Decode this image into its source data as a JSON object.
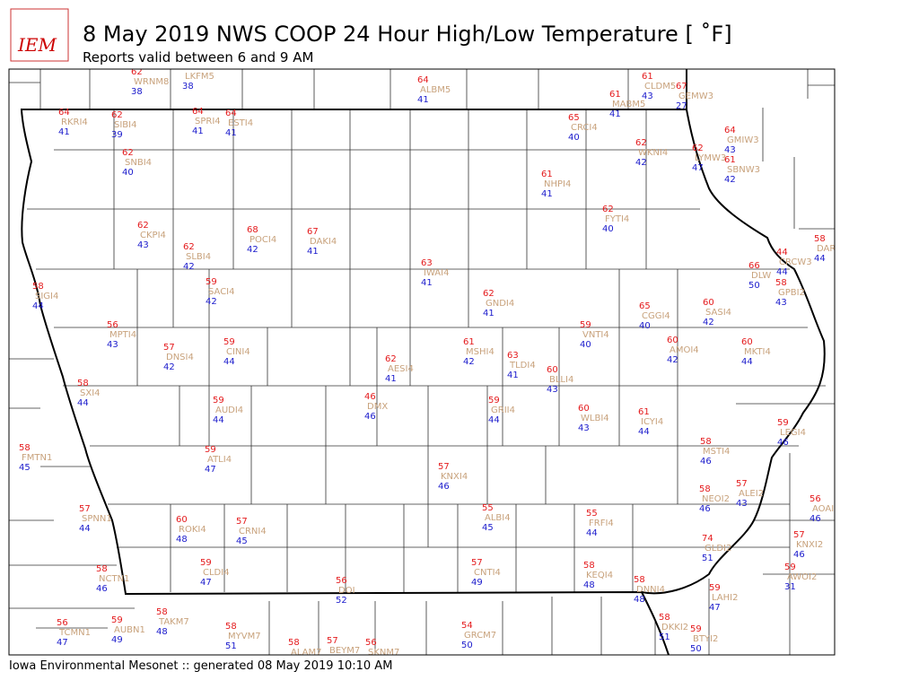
{
  "logo": "IEM",
  "title": "8 May 2019 NWS COOP 24 Hour High/Low Temperature [ ˚F]",
  "subtitle": "Reports valid between 6 and 9 AM",
  "footer": "Iowa Environmental Mesonet :: generated 08 May 2019 10:10 AM",
  "stations": [
    {
      "name": "WRNM8",
      "high": 62,
      "low": 38
    },
    {
      "name": "LKFM5",
      "low": 38
    },
    {
      "name": "ALBM5",
      "high": 64,
      "low": 41
    },
    {
      "name": "CLDM5",
      "high": 61,
      "low": 43
    },
    {
      "name": "MABM5",
      "high": 61,
      "low": 41
    },
    {
      "name": "GEMW3",
      "high": 67,
      "low": 27
    },
    {
      "name": "RKRI4",
      "high": 64,
      "low": 41
    },
    {
      "name": "SIBI4",
      "high": 62,
      "low": 39
    },
    {
      "name": "SPRI4",
      "high": 64,
      "low": 41
    },
    {
      "name": "ESTI4",
      "high": 64,
      "low": 41
    },
    {
      "name": "CRCI4",
      "high": 65,
      "low": 40
    },
    {
      "name": "GMIW3",
      "high": 64,
      "low": 43
    },
    {
      "name": "WKNI4",
      "high": 62,
      "low": 42
    },
    {
      "name": "LYMW3",
      "high": 62,
      "low": 47
    },
    {
      "name": "SBNW3",
      "high": 61,
      "low": 42
    },
    {
      "name": "SNBI4",
      "high": 62,
      "low": 40
    },
    {
      "name": "NHPI4",
      "high": 61,
      "low": 41
    },
    {
      "name": "FYTI4",
      "high": 62,
      "low": 40
    },
    {
      "name": "CKPI4",
      "high": 62,
      "low": 43
    },
    {
      "name": "POCI4",
      "high": 68,
      "low": 42
    },
    {
      "name": "DAKI4",
      "high": 67,
      "low": 41
    },
    {
      "name": "SLBI4",
      "high": 62,
      "low": 42
    },
    {
      "name": "DAR",
      "high": 58,
      "low": 44
    },
    {
      "name": "CRCW3",
      "high": 44,
      "low": 44
    },
    {
      "name": "DLW",
      "high": 66,
      "low": 50
    },
    {
      "name": "GPBI2",
      "high": 58,
      "low": 43
    },
    {
      "name": "IWAI4",
      "high": 63,
      "low": 41
    },
    {
      "name": "SIGI4",
      "high": 58,
      "low": 44
    },
    {
      "name": "SACI4",
      "high": 59,
      "low": 42
    },
    {
      "name": "GNDI4",
      "high": 62,
      "low": 41
    },
    {
      "name": "CGGI4",
      "high": 65,
      "low": 40
    },
    {
      "name": "SASI4",
      "high": 60,
      "low": 42
    },
    {
      "name": "MPTI4",
      "high": 56,
      "low": 43
    },
    {
      "name": "VNTI4",
      "high": 59,
      "low": 40
    },
    {
      "name": "CINI4",
      "high": 59,
      "low": 44
    },
    {
      "name": "DNSI4",
      "high": 57,
      "low": 42
    },
    {
      "name": "MSHI4",
      "high": 61,
      "low": 42
    },
    {
      "name": "AMOI4",
      "high": 60,
      "low": 42
    },
    {
      "name": "MKTI4",
      "high": 60,
      "low": 44
    },
    {
      "name": "AESI4",
      "high": 62,
      "low": 41
    },
    {
      "name": "TLDI4",
      "high": 63,
      "low": 41
    },
    {
      "name": "BLLI4",
      "high": 60,
      "low": 43
    },
    {
      "name": "SXI4",
      "high": 58,
      "low": 44
    },
    {
      "name": "DMX",
      "high": 46,
      "low": 46
    },
    {
      "name": "AUDI4",
      "high": 59,
      "low": 44
    },
    {
      "name": "GRII4",
      "high": 59,
      "low": 44
    },
    {
      "name": "WLBI4",
      "high": 60,
      "low": 43
    },
    {
      "name": "ICYI4",
      "high": 61,
      "low": 44
    },
    {
      "name": "LEGI4",
      "high": 59,
      "low": 46
    },
    {
      "name": "FMTN1",
      "high": 58,
      "low": 45
    },
    {
      "name": "ATLI4",
      "high": 59,
      "low": 47
    },
    {
      "name": "MSTI4",
      "high": 58,
      "low": 46
    },
    {
      "name": "KNXI4",
      "high": 57,
      "low": 46
    },
    {
      "name": "NEOI2",
      "high": 58,
      "low": 46
    },
    {
      "name": "ALEI2",
      "high": 57,
      "low": 43
    },
    {
      "name": "AOAI",
      "high": 56,
      "low": 46
    },
    {
      "name": "SPNN1",
      "high": 57,
      "low": 44
    },
    {
      "name": "ALBI4",
      "high": 55,
      "low": 45
    },
    {
      "name": "FRFI4",
      "high": 55,
      "low": 44
    },
    {
      "name": "ROKI4",
      "high": 60,
      "low": 48
    },
    {
      "name": "CRNI4",
      "high": 57,
      "low": 45
    },
    {
      "name": "KNXI2",
      "high": 57,
      "low": 46
    },
    {
      "name": "GLDI2",
      "high": 74,
      "low": 51
    },
    {
      "name": "NCTN1",
      "high": 58,
      "low": 46
    },
    {
      "name": "CLDI4",
      "high": 59,
      "low": 47
    },
    {
      "name": "CNTI4",
      "high": 57,
      "low": 49
    },
    {
      "name": "KEQI4",
      "high": 58,
      "low": 48
    },
    {
      "name": "AWOI2",
      "high": 59,
      "low": 31
    },
    {
      "name": "DOI",
      "high": 56,
      "low": 52
    },
    {
      "name": "DNNI4",
      "high": 58,
      "low": 48
    },
    {
      "name": "LAHI2",
      "high": 59,
      "low": 47
    },
    {
      "name": "TCMN1",
      "high": 56,
      "low": 47
    },
    {
      "name": "AUBN1",
      "high": 59,
      "low": 49
    },
    {
      "name": "TAKM7",
      "high": 58,
      "low": 48
    },
    {
      "name": "MYVM7",
      "high": 58,
      "low": 51
    },
    {
      "name": "GRCM7",
      "high": 54,
      "low": 50
    },
    {
      "name": "BTYI2",
      "high": 59,
      "low": 50
    },
    {
      "name": "DKKI2",
      "high": 58,
      "low": 51
    },
    {
      "name": "ALAM7",
      "high": 58
    },
    {
      "name": "BEYM7",
      "high": 57
    },
    {
      "name": "SKNM7",
      "high": 56
    }
  ]
}
